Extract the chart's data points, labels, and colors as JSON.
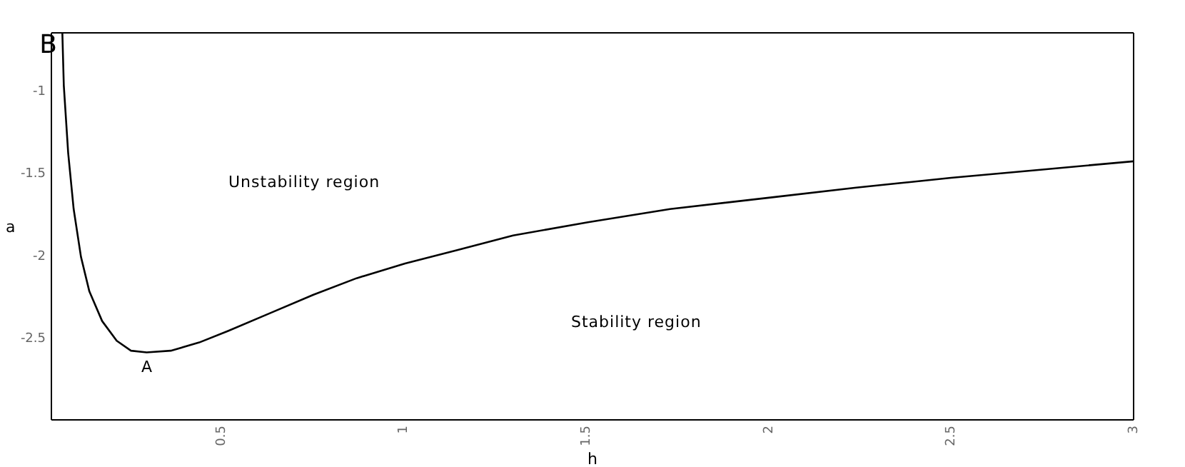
{
  "chart_data": {
    "type": "line",
    "xlabel": "h",
    "ylabel": "a",
    "xlim": [
      0.035,
      3
    ],
    "ylim": [
      -3,
      -0.65
    ],
    "xticks": [
      0.5,
      1,
      1.5,
      2,
      2.5,
      3
    ],
    "yticks": [
      -1,
      -1.5,
      -2,
      -2.5
    ],
    "grid": false,
    "legend": false,
    "marker": "none",
    "line_style": "solid",
    "series": [
      {
        "color": "#000000",
        "x": [
          0.065,
          0.069,
          0.081,
          0.096,
          0.116,
          0.139,
          0.174,
          0.214,
          0.253,
          0.296,
          0.362,
          0.44,
          0.519,
          0.636,
          0.753,
          0.871,
          1.004,
          1.145,
          1.3,
          1.505,
          1.73,
          2.005,
          2.24,
          2.5,
          2.75,
          3.0
        ],
        "values": [
          -0.65,
          -0.97,
          -1.38,
          -1.72,
          -2.01,
          -2.22,
          -2.4,
          -2.52,
          -2.58,
          -2.59,
          -2.58,
          -2.53,
          -2.46,
          -2.35,
          -2.24,
          -2.14,
          -2.05,
          -1.97,
          -1.88,
          -1.8,
          -1.72,
          -1.65,
          -1.59,
          -1.53,
          -1.48,
          -1.43
        ]
      }
    ],
    "annotations": [
      "Unstability region",
      "Stability region",
      {
        "text": "A",
        "x": 0.296,
        "y": -2.59
      },
      {
        "text": "B",
        "x": 0.065,
        "y": -0.65
      }
    ]
  }
}
